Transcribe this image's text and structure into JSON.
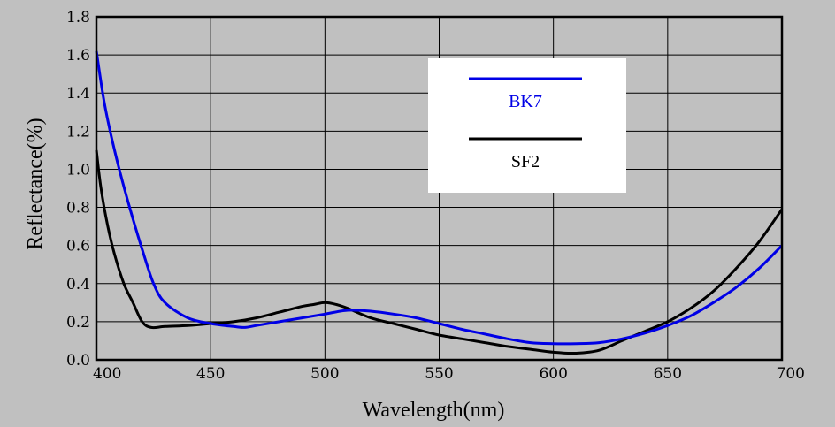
{
  "chart_data": {
    "type": "line",
    "xlabel": "Wavelength(nm)",
    "ylabel": "Reflectance(%)",
    "xlim": [
      400,
      700
    ],
    "ylim": [
      0.0,
      1.8
    ],
    "xticks": [
      400,
      450,
      500,
      550,
      600,
      650,
      700
    ],
    "xtick_labels": [
      "400",
      "450",
      "500",
      "550",
      "600",
      "650",
      "700"
    ],
    "yticks": [
      0,
      0.2,
      0.4,
      0.6,
      0.8,
      1.0,
      1.2,
      1.4,
      1.6,
      1.8
    ],
    "ytick_labels": [
      "0.0",
      "0.2",
      "0.4",
      "0.6",
      "0.8",
      "1.0",
      "1.2",
      "1.4",
      "1.6",
      "1.8"
    ],
    "grid": true,
    "legend_position": "top-right",
    "series": [
      {
        "name": "BK7",
        "color": "#0000e6",
        "x": [
          400,
          403,
          406,
          410,
          415,
          420,
          425,
          430,
          440,
          450,
          460,
          465,
          470,
          480,
          490,
          500,
          510,
          520,
          530,
          540,
          550,
          560,
          570,
          580,
          590,
          600,
          610,
          620,
          630,
          640,
          650,
          660,
          670,
          680,
          690,
          700
        ],
        "y": [
          1.62,
          1.38,
          1.2,
          1.0,
          0.78,
          0.58,
          0.4,
          0.3,
          0.22,
          0.19,
          0.175,
          0.17,
          0.18,
          0.2,
          0.22,
          0.24,
          0.26,
          0.255,
          0.24,
          0.22,
          0.19,
          0.16,
          0.135,
          0.11,
          0.09,
          0.085,
          0.085,
          0.09,
          0.11,
          0.14,
          0.18,
          0.23,
          0.3,
          0.38,
          0.48,
          0.6
        ]
      },
      {
        "name": "SF2",
        "color": "#000000",
        "x": [
          400,
          402,
          405,
          408,
          412,
          416,
          420,
          424,
          430,
          440,
          450,
          460,
          470,
          480,
          490,
          495,
          500,
          505,
          510,
          520,
          530,
          540,
          550,
          560,
          570,
          580,
          590,
          600,
          610,
          620,
          630,
          640,
          650,
          660,
          670,
          680,
          690,
          700
        ],
        "y": [
          1.1,
          0.9,
          0.7,
          0.55,
          0.4,
          0.3,
          0.2,
          0.17,
          0.175,
          0.18,
          0.19,
          0.2,
          0.22,
          0.25,
          0.28,
          0.29,
          0.3,
          0.29,
          0.27,
          0.22,
          0.19,
          0.16,
          0.13,
          0.11,
          0.09,
          0.07,
          0.055,
          0.04,
          0.035,
          0.05,
          0.1,
          0.15,
          0.2,
          0.27,
          0.36,
          0.48,
          0.62,
          0.79
        ]
      }
    ]
  }
}
